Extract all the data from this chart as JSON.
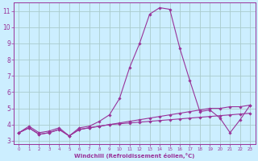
{
  "x": [
    0,
    1,
    2,
    3,
    4,
    5,
    6,
    7,
    8,
    9,
    10,
    11,
    12,
    13,
    14,
    15,
    16,
    17,
    18,
    19,
    20,
    21,
    22,
    23
  ],
  "line1": [
    3.5,
    3.9,
    3.5,
    3.6,
    3.8,
    3.3,
    3.8,
    3.9,
    4.2,
    4.6,
    5.6,
    7.5,
    9.0,
    10.8,
    11.2,
    11.1,
    8.7,
    6.7,
    4.8,
    4.9,
    4.4,
    3.5,
    4.3,
    5.2
  ],
  "line2": [
    3.5,
    3.8,
    3.4,
    3.5,
    3.7,
    3.3,
    3.7,
    3.8,
    3.9,
    4.0,
    4.1,
    4.2,
    4.3,
    4.4,
    4.5,
    4.6,
    4.7,
    4.8,
    4.9,
    5.0,
    5.0,
    5.1,
    5.1,
    5.2
  ],
  "line3": [
    3.5,
    3.8,
    3.4,
    3.5,
    3.7,
    3.3,
    3.7,
    3.8,
    3.9,
    4.0,
    4.05,
    4.1,
    4.15,
    4.2,
    4.25,
    4.3,
    4.35,
    4.4,
    4.45,
    4.5,
    4.55,
    4.6,
    4.65,
    4.7
  ],
  "line_color": "#993399",
  "bg_color": "#cceeff",
  "grid_color": "#aacccc",
  "axis_color": "#993399",
  "xlabel": "Windchill (Refroidissement éolien,°C)",
  "ylim_min": 2.8,
  "ylim_max": 11.5,
  "xlim_min": -0.5,
  "xlim_max": 23.5,
  "yticks": [
    3,
    4,
    5,
    6,
    7,
    8,
    9,
    10,
    11
  ],
  "xticks": [
    0,
    1,
    2,
    3,
    4,
    5,
    6,
    7,
    8,
    9,
    10,
    11,
    12,
    13,
    14,
    15,
    16,
    17,
    18,
    19,
    20,
    21,
    22,
    23
  ]
}
